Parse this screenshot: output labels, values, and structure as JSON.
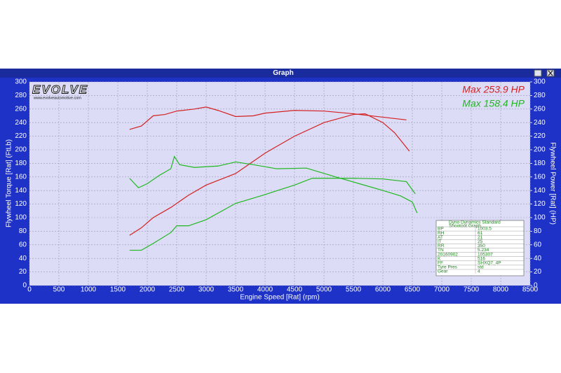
{
  "chart_data": {
    "type": "line",
    "window_title": "Graph",
    "x_label": "Engine Speed [Rat] (rpm)",
    "y_label": "Flywheel Torque [Rat] (FtLb)",
    "y2_label": "Flywheel Power [Rat] (HP)",
    "logo_text": "EVOLVE",
    "logo_url": "www.evolveautomotive.com",
    "xlim": [
      0,
      8500
    ],
    "xticks": [
      0,
      500,
      1000,
      1500,
      2000,
      2500,
      3000,
      3500,
      4000,
      4500,
      5000,
      5500,
      6000,
      6500,
      7000,
      7500,
      8000,
      8500
    ],
    "ylim": [
      0,
      300
    ],
    "yticks": [
      0,
      20,
      40,
      60,
      80,
      100,
      120,
      140,
      160,
      180,
      200,
      220,
      240,
      260,
      280,
      300
    ],
    "y2lim": [
      0,
      300
    ],
    "y2ticks": [
      0,
      20,
      40,
      60,
      80,
      100,
      120,
      140,
      160,
      180,
      200,
      220,
      240,
      260,
      280,
      300
    ],
    "grid": true,
    "annotations": [
      {
        "text": "Max 253.9 HP",
        "color": "#d42020"
      },
      {
        "text": "Max 158.4 HP",
        "color": "#1fb81f"
      }
    ],
    "series": [
      {
        "color": "#d42020",
        "x": [
          1700,
          1900,
          2100,
          2300,
          2500,
          2800,
          3000,
          3200,
          3500,
          3800,
          4000,
          4500,
          5000,
          5500,
          6000,
          6400
        ],
        "values": [
          230,
          235,
          250,
          252,
          257,
          260,
          263,
          258,
          249,
          250,
          254,
          258,
          257,
          253,
          248,
          244
        ]
      },
      {
        "color": "#d42020",
        "axis": "y2",
        "x": [
          1700,
          1900,
          2100,
          2400,
          2700,
          3000,
          3500,
          4000,
          4500,
          5000,
          5500,
          5700,
          6000,
          6200,
          6450
        ],
        "values": [
          74,
          85,
          100,
          115,
          133,
          148,
          165,
          195,
          220,
          240,
          252,
          253,
          240,
          225,
          198
        ]
      },
      {
        "color": "#1fb81f",
        "x": [
          1700,
          1850,
          2000,
          2200,
          2400,
          2460,
          2550,
          2800,
          3200,
          3500,
          3800,
          4200,
          4700,
          5200,
          5600,
          6000,
          6300,
          6500,
          6580
        ],
        "values": [
          158,
          144,
          150,
          162,
          172,
          190,
          178,
          174,
          176,
          182,
          178,
          172,
          173,
          160,
          150,
          140,
          132,
          123,
          107
        ]
      },
      {
        "color": "#1fb81f",
        "axis": "y2",
        "x": [
          1700,
          1900,
          2100,
          2400,
          2500,
          2700,
          3000,
          3500,
          4000,
          4500,
          4800,
          5500,
          6000,
          6400,
          6550
        ],
        "values": [
          52,
          52,
          62,
          78,
          88,
          88,
          97,
          121,
          134,
          148,
          158,
          158,
          157,
          153,
          135
        ]
      }
    ],
    "info_table": {
      "title": [
        "Dyno Dynamics Standard",
        "Shootout Graph"
      ],
      "rows": [
        [
          "BP",
          "1003.5"
        ],
        [
          "RH",
          "61"
        ],
        [
          "AT",
          "21"
        ],
        [
          "IT",
          "25"
        ],
        [
          "RR",
          "350"
        ],
        [
          "TN",
          "5.234"
        ],
        [
          "20160902",
          "105307"
        ],
        [
          "K",
          "516"
        ],
        [
          "FF",
          "SHXQ7_4P"
        ],
        [
          "Tyre Pres",
          "std"
        ],
        [
          "Gear",
          "4"
        ]
      ]
    }
  }
}
